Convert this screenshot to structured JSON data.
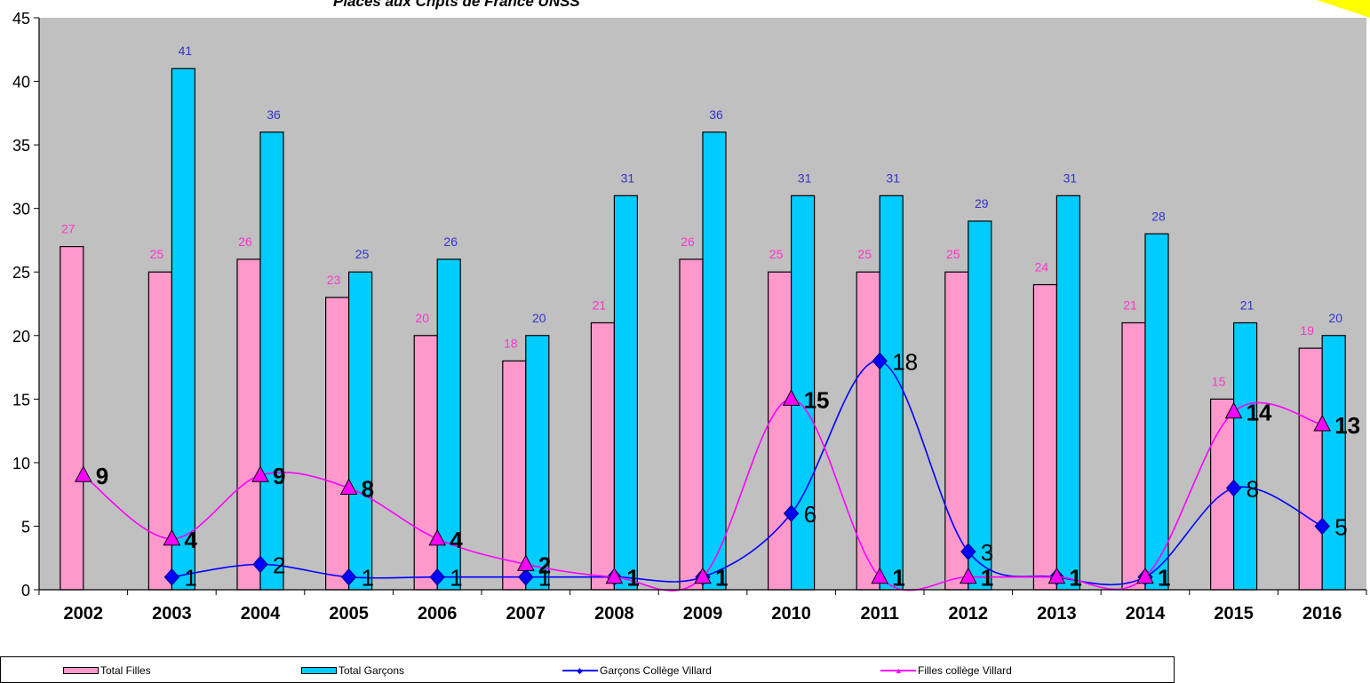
{
  "chart_data": {
    "type": "bar",
    "title": "Places aux Chpts de France UNSS",
    "categories": [
      "2002",
      "2003",
      "2004",
      "2005",
      "2006",
      "2007",
      "2008",
      "2009",
      "2010",
      "2011",
      "2012",
      "2013",
      "2014",
      "2015",
      "2016"
    ],
    "ylim": [
      0,
      45
    ],
    "yticks": [
      0,
      5,
      10,
      15,
      20,
      25,
      30,
      35,
      40,
      45
    ],
    "grid": false,
    "legend_position": "bottom",
    "series": [
      {
        "name": "Total Filles",
        "kind": "bar",
        "color": "#ff99cc",
        "label_color": "#ff33cc",
        "values": [
          27,
          25,
          26,
          23,
          20,
          18,
          21,
          26,
          25,
          25,
          25,
          24,
          21,
          15,
          19
        ]
      },
      {
        "name": "Total Garçons",
        "kind": "bar",
        "color": "#00ccff",
        "label_color": "#3333cc",
        "values": [
          null,
          41,
          36,
          25,
          26,
          20,
          31,
          36,
          31,
          31,
          29,
          31,
          28,
          21,
          20
        ]
      },
      {
        "name": "Garçons Collège Villard",
        "kind": "line",
        "color": "#0000ff",
        "label_color": "#000000",
        "values": [
          null,
          1,
          2,
          1,
          1,
          1,
          1,
          1,
          6,
          18,
          3,
          1,
          1,
          8,
          5
        ]
      },
      {
        "name": "Filles collège Villard",
        "kind": "line",
        "color": "#ff00ff",
        "label_color": "#000000",
        "values": [
          9,
          4,
          9,
          8,
          4,
          2,
          1,
          1,
          15,
          1,
          1,
          1,
          1,
          14,
          13
        ]
      }
    ],
    "plot_background": "#c0c0c0"
  }
}
